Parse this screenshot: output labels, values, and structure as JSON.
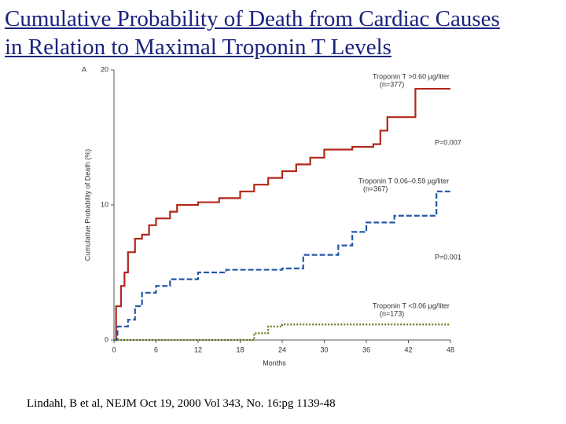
{
  "slide": {
    "title_lines": [
      "Cumulative Probability of Death from Cardiac Causes",
      "in Relation to Maximal Troponin T Levels"
    ],
    "citation": "Lindahl, B et al, NEJM Oct 19, 2000 Vol 343, No. 16:pg 1139-48"
  },
  "chart_data": {
    "type": "line",
    "step": true,
    "panel_label": "A",
    "x_label": "Months",
    "y_label": "Cumulative Probability of Death (%)",
    "xlim": [
      0,
      48
    ],
    "xticks": [
      0,
      6,
      12,
      18,
      24,
      30,
      36,
      42,
      48
    ],
    "ylim": [
      0,
      20
    ],
    "yticks": [
      0,
      10,
      20
    ],
    "series": [
      {
        "name": "Troponin T >0.60 µg/liter",
        "color": "#b0281a",
        "dash": "solid",
        "x": [
          0,
          0.3,
          1,
          1.5,
          2,
          3,
          4,
          5,
          6,
          8,
          9,
          12,
          15,
          18,
          20,
          22,
          24,
          26,
          28,
          30,
          34,
          37,
          38,
          39,
          43,
          48
        ],
        "values": [
          0,
          2.5,
          4,
          5,
          6.5,
          7.5,
          7.8,
          8.5,
          9,
          9.5,
          10,
          10.2,
          10.5,
          11,
          11.5,
          12,
          12.5,
          13,
          13.5,
          14.1,
          14.3,
          14.5,
          15.5,
          16.5,
          18.6,
          18.6
        ]
      },
      {
        "name": "Troponin T 0.06–0.59 µg/liter",
        "color": "#2456a6",
        "dash": "dashed",
        "x": [
          0,
          0.5,
          2,
          3,
          4,
          6,
          8,
          12,
          16,
          24,
          27,
          32,
          34,
          36,
          40,
          46,
          48
        ],
        "values": [
          0,
          1,
          1.5,
          2.5,
          3.5,
          4,
          4.5,
          5,
          5.2,
          5.3,
          6.3,
          7,
          8,
          8.7,
          9.2,
          11,
          11
        ]
      },
      {
        "name": "Troponin T <0.06 µg/liter",
        "color": "#5d7a18",
        "dash": "dotted",
        "x": [
          0,
          20,
          22,
          24,
          48
        ],
        "values": [
          0,
          0.5,
          1,
          1.15,
          1.15
        ]
      }
    ],
    "annotations": [
      "(n=377)",
      "P=0.007",
      "(n=367)",
      "P=0.001",
      "(n=173)"
    ]
  }
}
